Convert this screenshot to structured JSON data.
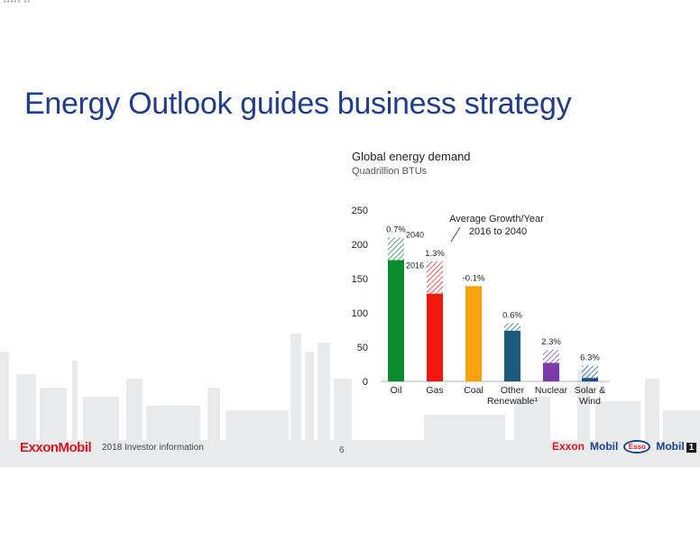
{
  "corner_mark": "▪▪▪▪▪ ▪▪",
  "slide_title": "Energy Outlook guides business strategy",
  "footer": {
    "logo": "ExxonMobil",
    "info": "2018 Investor information",
    "page_number": "6",
    "brands": {
      "exxon": "Exxon",
      "mobil": "Mobil",
      "esso": "Esso",
      "mobil1": "Mobil",
      "mobil1_num": "1"
    }
  },
  "colors": {
    "title": "#1f3d8c",
    "oil": "#0c8a2e",
    "gas": "#f2160f",
    "coal": "#f7a10b",
    "other_renewable": "#1b5a7a",
    "nuclear": "#7a3aa8",
    "solar_wind": "#1c4f86"
  },
  "chart_data": {
    "type": "bar",
    "title": "Global energy demand",
    "subtitle": "Quadrillion BTUs",
    "ylim": [
      0,
      250
    ],
    "yticks": [
      "0",
      "50",
      "100",
      "150",
      "200",
      "250"
    ],
    "categories": [
      "Oil",
      "Gas",
      "Coal",
      "Other Renewable¹",
      "Nuclear",
      "Solar & Wind"
    ],
    "series": [
      {
        "name": "2016",
        "values": [
          177,
          128,
          139,
          74,
          27,
          5
        ]
      },
      {
        "name": "2040",
        "values": [
          210,
          175,
          137,
          85,
          46,
          23
        ]
      }
    ],
    "growth_labels": [
      "0.7%",
      "1.3%",
      "-0.1%",
      "0.6%",
      "2.3%",
      "6.3%"
    ],
    "annotation": "Average Growth/Year\n2016 to 2040"
  }
}
